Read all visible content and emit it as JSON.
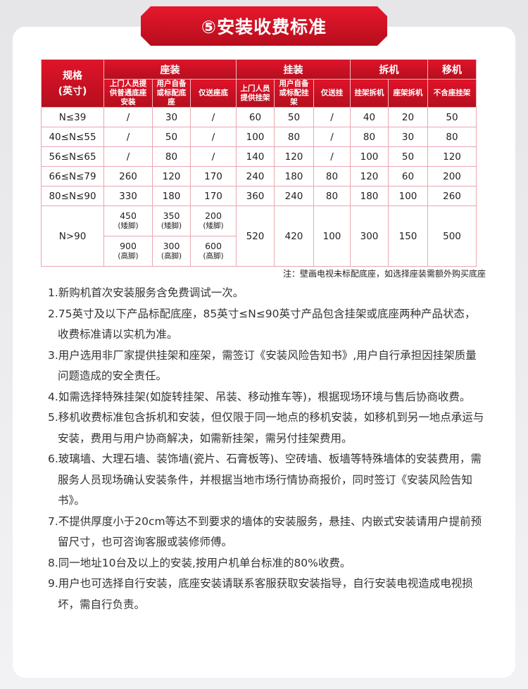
{
  "title": "⑤安装收费标准",
  "table": {
    "spec_header": [
      "规格",
      "(英寸)"
    ],
    "groups": [
      "座装",
      "挂装",
      "拆机",
      "移机"
    ],
    "subheaders": [
      "上门人员提供普通底座安装",
      "用户自备或标配底座",
      "仅送座底",
      "上门人员提供挂架",
      "用户自备或标配挂架",
      "仅送挂",
      "挂架拆机",
      "座架拆机",
      "不含座挂架"
    ],
    "rows": [
      [
        "N≤39",
        "/",
        "30",
        "/",
        "60",
        "50",
        "/",
        "40",
        "20",
        "50"
      ],
      [
        "40≤N≤55",
        "/",
        "50",
        "/",
        "100",
        "80",
        "/",
        "80",
        "30",
        "80"
      ],
      [
        "56≤N≤65",
        "/",
        "80",
        "/",
        "140",
        "120",
        "/",
        "100",
        "50",
        "120"
      ],
      [
        "66≤N≤79",
        "260",
        "120",
        "170",
        "240",
        "180",
        "80",
        "120",
        "60",
        "200"
      ],
      [
        "80≤N≤90",
        "330",
        "180",
        "170",
        "360",
        "240",
        "80",
        "180",
        "100",
        "260"
      ]
    ],
    "last": {
      "spec": "N>90",
      "low": [
        "450",
        "(矮脚)",
        "350",
        "(矮脚)",
        "200",
        "(矮脚)"
      ],
      "high": [
        "900",
        "(高脚)",
        "300",
        "(高脚)",
        "600",
        "(高脚)"
      ],
      "rest": [
        "520",
        "420",
        "100",
        "300",
        "150",
        "500"
      ]
    }
  },
  "note": "注：壁画电视未标配底座，如选择座装需额外购买底座",
  "items": [
    "1.新购机首次安装服务含免费调试一次。",
    "2.75英寸及以下产品标配底座，85英寸≤N≤90英寸产品包含挂架或底座两种产品状态，收费标准请以实机为准。",
    "3.用户选用非厂家提供挂架和座架，需签订《安装风险告知书》,用户自行承担因挂架质量问题造成的安全责任。",
    "4.如需选择特殊挂架(如旋转挂架、吊装、移动推车等)，根据现场环境与售后协商收费。",
    "5.移机收费标准包含拆机和安装，但仅限于同一地点的移机安装，如移机到另一地点承运与安装，费用与用户协商解决，如需新挂架，需另付挂架费用。",
    "6.玻璃墙、大理石墙、装饰墙(瓷片、石膏板等)、空砖墙、板墙等特殊墙体的安装费用，需服务人员现场确认安装条件，并根据当地市场行情协商报价，同时签订《安装风险告知书》。",
    "7.不提供厚度小于20cm等达不到要求的墙体的安装服务，悬挂、内嵌式安装请用户提前预留尺寸，也可咨询客服或装修师傅。",
    "8.同一地址10台及以上的安装,按用户机单台标准的80%收费。",
    "9.用户也可选择自行安装，底座安装请联系客服获取安装指导，自行安装电视造成电视损坏，需自行负责。"
  ]
}
